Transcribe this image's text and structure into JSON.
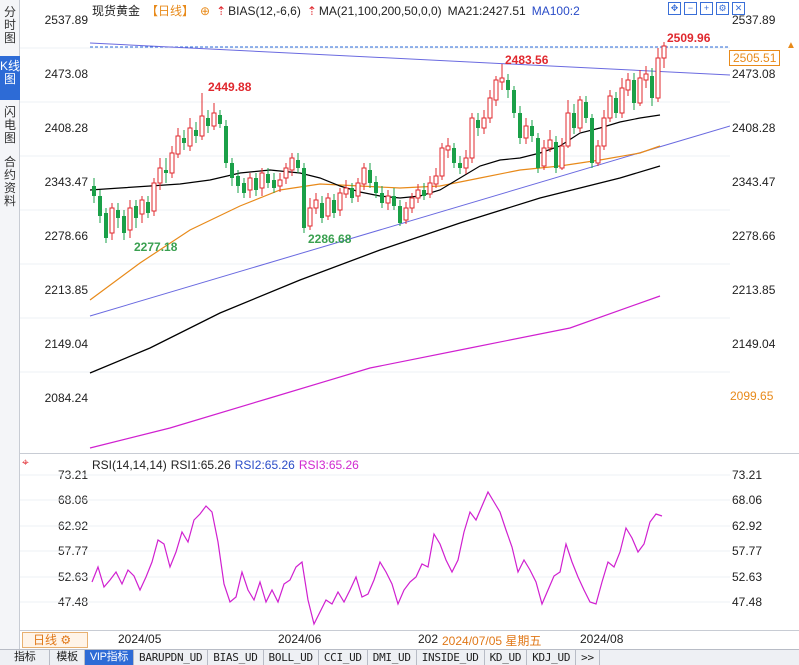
{
  "side_tabs": [
    "分时图",
    "K线图",
    "闪电图",
    "合约资料"
  ],
  "header": {
    "symbol": "现货黄金",
    "period": "【日线】",
    "gear": "⊕",
    "indicator1": "BIAS(12,-6,6)",
    "indicator2": "MA(21,100,200,50,0,0)",
    "ma21": "MA21:2427.51",
    "ma100": "MA100:2"
  },
  "price_axis": {
    "left": [
      "2537.89",
      "2473.08",
      "2408.28",
      "2343.47",
      "2278.66",
      "2213.85",
      "2149.04",
      "2084.24"
    ],
    "right": [
      "2537.89",
      "2473.08",
      "2408.28",
      "2343.47",
      "2278.66",
      "2213.85",
      "2149.04"
    ],
    "current_price": "2505.51",
    "low_box": "2099.65"
  },
  "annotations": {
    "high1": "2449.88",
    "high2": "2483.56",
    "high3": "2509.96",
    "low1": "2277.18",
    "low2": "2286.68"
  },
  "rsi": {
    "header": "RSI(14,14,14)",
    "rsi1": "RSI1:65.26",
    "rsi2": "RSI2:65.26",
    "rsi3": "RSI3:65.26",
    "left_axis": [
      "73.21",
      "68.06",
      "62.92",
      "57.77",
      "52.63",
      "47.48"
    ],
    "right_axis": [
      "73.21",
      "68.06",
      "62.92",
      "57.77",
      "52.63",
      "47.48"
    ]
  },
  "time_axis": {
    "period_button": "日线",
    "dates": [
      "2024/05",
      "2024/06",
      "202",
      "2024/07/05 星期五",
      "2024/08"
    ]
  },
  "bottom_tabs": [
    "指标",
    "模板",
    "VIP指标",
    "BARUPDN_UD",
    "BIAS_UD",
    "BOLL_UD",
    "CCI_UD",
    "DMI_UD",
    "INSIDE_UD",
    "KD_UD",
    "KDJ_UD",
    ">>"
  ],
  "colors": {
    "up": "#e0282e",
    "down": "#1aa048",
    "ma21": "#000000",
    "ma50": "#e88a1a",
    "ma100": "#000000",
    "ma200": "#d020d0",
    "rsi": "#d020d0",
    "trendline": "#6a6ae0"
  }
}
